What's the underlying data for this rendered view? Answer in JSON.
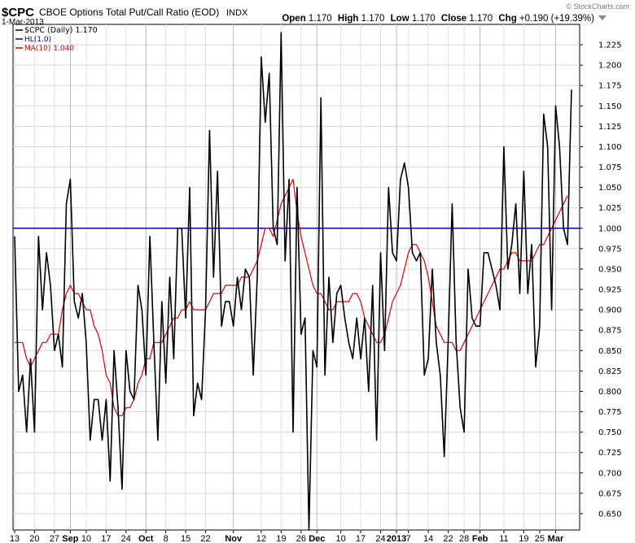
{
  "header": {
    "symbol": "$CPC",
    "name": "CBOE Options Total Put/Call Ratio (EOD)",
    "exchange": "INDX",
    "date": "1-Mar-2013",
    "watermark": "© StockCharts.com",
    "ohlc": {
      "open_label": "Open",
      "open": "1.170",
      "high_label": "High",
      "high": "1.170",
      "low_label": "Low",
      "low": "1.170",
      "close_label": "Close",
      "close": "1.170",
      "chg_label": "Chg",
      "chg": "+0.190 (+19.39%)"
    }
  },
  "legend": [
    {
      "label": "$CPC (Daily) 1.170",
      "color": "#000000"
    },
    {
      "label": "HL(1.0)",
      "color": "#0000aa"
    },
    {
      "label": "MA(10) 1.040",
      "color": "#dd0000"
    }
  ],
  "chart_data": {
    "type": "line",
    "ylim": [
      0.63,
      1.25
    ],
    "yticks": [
      "0.650",
      "0.675",
      "0.700",
      "0.725",
      "0.750",
      "0.775",
      "0.800",
      "0.825",
      "0.850",
      "0.875",
      "0.900",
      "0.925",
      "0.950",
      "0.975",
      "1.000",
      "1.025",
      "1.050",
      "1.075",
      "1.100",
      "1.125",
      "1.150",
      "1.175",
      "1.200",
      "1.225"
    ],
    "xticks": [
      {
        "label": "13",
        "i": 0,
        "major": false
      },
      {
        "label": "20",
        "i": 5,
        "major": false
      },
      {
        "label": "27",
        "i": 10,
        "major": false
      },
      {
        "label": "Sep",
        "i": 14,
        "major": true
      },
      {
        "label": "10",
        "i": 18,
        "major": false
      },
      {
        "label": "17",
        "i": 23,
        "major": false
      },
      {
        "label": "24",
        "i": 28,
        "major": false
      },
      {
        "label": "Oct",
        "i": 33,
        "major": true
      },
      {
        "label": "8",
        "i": 38,
        "major": false
      },
      {
        "label": "15",
        "i": 43,
        "major": false
      },
      {
        "label": "22",
        "i": 48,
        "major": false
      },
      {
        "label": "Nov",
        "i": 55,
        "major": true
      },
      {
        "label": "12",
        "i": 62,
        "major": false
      },
      {
        "label": "19",
        "i": 67,
        "major": false
      },
      {
        "label": "26",
        "i": 72,
        "major": false
      },
      {
        "label": "Dec",
        "i": 76,
        "major": true
      },
      {
        "label": "10",
        "i": 82,
        "major": false
      },
      {
        "label": "17",
        "i": 87,
        "major": false
      },
      {
        "label": "24",
        "i": 92,
        "major": false
      },
      {
        "label": "2013",
        "i": 96,
        "major": true
      },
      {
        "label": "7",
        "i": 99,
        "major": false
      },
      {
        "label": "14",
        "i": 104,
        "major": false
      },
      {
        "label": "22",
        "i": 109,
        "major": false
      },
      {
        "label": "28",
        "i": 113,
        "major": false
      },
      {
        "label": "Feb",
        "i": 117,
        "major": true
      },
      {
        "label": "11",
        "i": 123,
        "major": false
      },
      {
        "label": "19",
        "i": 128,
        "major": false
      },
      {
        "label": "25",
        "i": 132,
        "major": false
      },
      {
        "label": "Mar",
        "i": 136,
        "major": true
      }
    ],
    "hline": {
      "name": "HL(1.0)",
      "value": 1.0
    },
    "series": [
      {
        "name": "$CPC (Daily)",
        "color": "#000000",
        "values": [
          0.99,
          0.8,
          0.82,
          0.75,
          0.84,
          0.75,
          0.99,
          0.9,
          0.97,
          0.93,
          0.85,
          0.87,
          0.83,
          1.03,
          1.06,
          0.91,
          0.89,
          0.92,
          0.86,
          0.74,
          0.79,
          0.79,
          0.74,
          0.79,
          0.69,
          0.85,
          0.78,
          0.68,
          0.85,
          0.8,
          0.79,
          0.93,
          0.9,
          0.82,
          0.99,
          0.86,
          0.74,
          0.91,
          0.81,
          0.94,
          0.84,
          1.0,
          1.0,
          0.89,
          1.05,
          0.77,
          0.81,
          0.79,
          0.9,
          1.12,
          0.94,
          1.07,
          0.88,
          0.91,
          0.91,
          0.88,
          0.94,
          0.9,
          0.95,
          0.94,
          0.82,
          0.94,
          1.21,
          1.13,
          1.19,
          1.0,
          0.98,
          1.24,
          0.96,
          1.06,
          0.75,
          1.05,
          0.87,
          0.89,
          0.63,
          0.85,
          0.83,
          1.16,
          0.82,
          0.94,
          0.86,
          0.92,
          0.93,
          0.89,
          0.86,
          0.84,
          0.89,
          0.84,
          0.89,
          0.8,
          0.93,
          0.74,
          0.97,
          0.85,
          1.05,
          0.97,
          0.96,
          1.06,
          1.08,
          1.05,
          0.97,
          0.96,
          0.97,
          0.82,
          0.84,
          0.95,
          0.86,
          0.82,
          0.72,
          0.86,
          1.03,
          0.86,
          0.78,
          0.75,
          0.95,
          0.89,
          0.88,
          0.88,
          0.97,
          0.97,
          0.95,
          0.93,
          0.9,
          1.1,
          0.95,
          0.98,
          1.03,
          0.92,
          1.07,
          0.92,
          0.98,
          0.83,
          0.88,
          1.14,
          1.1,
          0.9,
          1.15,
          1.1,
          1.0,
          0.98,
          1.17
        ]
      },
      {
        "name": "MA(10)",
        "color": "#dd0000",
        "values": [
          0.86,
          0.86,
          0.86,
          0.84,
          0.83,
          0.84,
          0.85,
          0.86,
          0.86,
          0.87,
          0.87,
          0.87,
          0.9,
          0.92,
          0.93,
          0.92,
          0.92,
          0.91,
          0.9,
          0.9,
          0.88,
          0.87,
          0.85,
          0.82,
          0.81,
          0.78,
          0.77,
          0.77,
          0.78,
          0.78,
          0.79,
          0.81,
          0.82,
          0.84,
          0.84,
          0.86,
          0.86,
          0.86,
          0.87,
          0.88,
          0.89,
          0.89,
          0.9,
          0.9,
          0.91,
          0.9,
          0.9,
          0.9,
          0.9,
          0.91,
          0.92,
          0.92,
          0.92,
          0.93,
          0.93,
          0.93,
          0.93,
          0.94,
          0.94,
          0.94,
          0.95,
          0.96,
          0.98,
          1.0,
          1.0,
          0.99,
          1.01,
          1.03,
          1.04,
          1.05,
          1.06,
          1.02,
          0.99,
          0.97,
          0.95,
          0.93,
          0.92,
          0.92,
          0.91,
          0.9,
          0.9,
          0.91,
          0.91,
          0.91,
          0.91,
          0.92,
          0.92,
          0.91,
          0.89,
          0.88,
          0.87,
          0.86,
          0.86,
          0.87,
          0.89,
          0.91,
          0.92,
          0.93,
          0.95,
          0.97,
          0.98,
          0.98,
          0.97,
          0.96,
          0.94,
          0.91,
          0.88,
          0.87,
          0.86,
          0.86,
          0.86,
          0.85,
          0.85,
          0.86,
          0.87,
          0.88,
          0.89,
          0.9,
          0.91,
          0.92,
          0.93,
          0.94,
          0.95,
          0.95,
          0.96,
          0.97,
          0.97,
          0.96,
          0.96,
          0.96,
          0.96,
          0.97,
          0.98,
          0.98,
          0.99,
          1.0,
          1.01,
          1.02,
          1.03,
          1.04
        ]
      }
    ]
  }
}
